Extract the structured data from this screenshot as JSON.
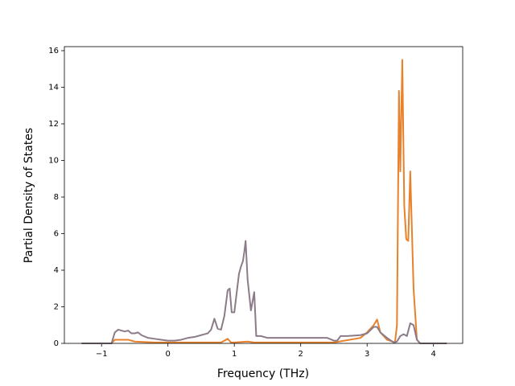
{
  "chart_data": {
    "type": "line",
    "xlabel": "Frequency (THz)",
    "ylabel": "Partial Density of States",
    "xlim": [
      -1.56,
      4.44
    ],
    "ylim": [
      0,
      16.22
    ],
    "xticks": [
      {
        "value": -1,
        "label": "−1"
      },
      0,
      1,
      2,
      3,
      4
    ],
    "yticks": [
      0,
      2,
      4,
      6,
      8,
      10,
      12,
      14,
      16
    ],
    "series": [
      {
        "color": "#e8812b",
        "x": [
          -1.3,
          -0.85,
          -0.8,
          -0.6,
          -0.5,
          -0.2,
          0.8,
          0.9,
          0.95,
          1.0,
          1.2,
          1.3,
          2.5,
          2.9,
          3.0,
          3.1,
          3.15,
          3.2,
          3.3,
          3.42,
          3.45,
          3.48,
          3.5,
          3.53,
          3.56,
          3.59,
          3.62,
          3.65,
          3.7,
          3.75,
          3.8,
          4.2
        ],
        "values": [
          0,
          0,
          0.2,
          0.2,
          0.1,
          0.05,
          0.05,
          0.25,
          0.05,
          0.05,
          0.1,
          0.05,
          0.05,
          0.3,
          0.6,
          1.0,
          1.3,
          0.6,
          0.2,
          0.05,
          1.0,
          13.8,
          9.4,
          15.5,
          7.5,
          5.7,
          5.6,
          9.4,
          3.0,
          0.2,
          0,
          0
        ]
      },
      {
        "color": "#8c7b88",
        "x": [
          -1.3,
          -0.85,
          -0.8,
          -0.75,
          -0.7,
          -0.65,
          -0.6,
          -0.55,
          -0.5,
          -0.45,
          -0.4,
          -0.3,
          -0.2,
          -0.1,
          0,
          0.1,
          0.2,
          0.3,
          0.4,
          0.5,
          0.6,
          0.65,
          0.7,
          0.75,
          0.8,
          0.85,
          0.9,
          0.93,
          0.96,
          1.0,
          1.03,
          1.07,
          1.1,
          1.13,
          1.15,
          1.17,
          1.2,
          1.25,
          1.3,
          1.33,
          1.4,
          1.5,
          1.6,
          1.8,
          2.0,
          2.2,
          2.4,
          2.5,
          2.55,
          2.6,
          2.7,
          2.9,
          3.0,
          3.1,
          3.15,
          3.2,
          3.3,
          3.4,
          3.45,
          3.5,
          3.55,
          3.6,
          3.65,
          3.7,
          3.75,
          3.8,
          4.2
        ],
        "values": [
          0,
          0,
          0.6,
          0.75,
          0.7,
          0.65,
          0.7,
          0.55,
          0.55,
          0.6,
          0.45,
          0.3,
          0.25,
          0.2,
          0.15,
          0.15,
          0.2,
          0.3,
          0.35,
          0.45,
          0.55,
          0.75,
          1.35,
          0.8,
          0.75,
          1.5,
          2.9,
          3.0,
          1.7,
          1.7,
          2.6,
          3.8,
          4.2,
          4.5,
          5.0,
          5.6,
          3.5,
          1.8,
          2.8,
          0.4,
          0.4,
          0.3,
          0.3,
          0.3,
          0.3,
          0.3,
          0.3,
          0.15,
          0.15,
          0.4,
          0.4,
          0.45,
          0.55,
          0.9,
          0.9,
          0.6,
          0.3,
          0.05,
          0.1,
          0.4,
          0.5,
          0.4,
          1.1,
          1.0,
          0.2,
          0,
          0
        ]
      }
    ]
  }
}
